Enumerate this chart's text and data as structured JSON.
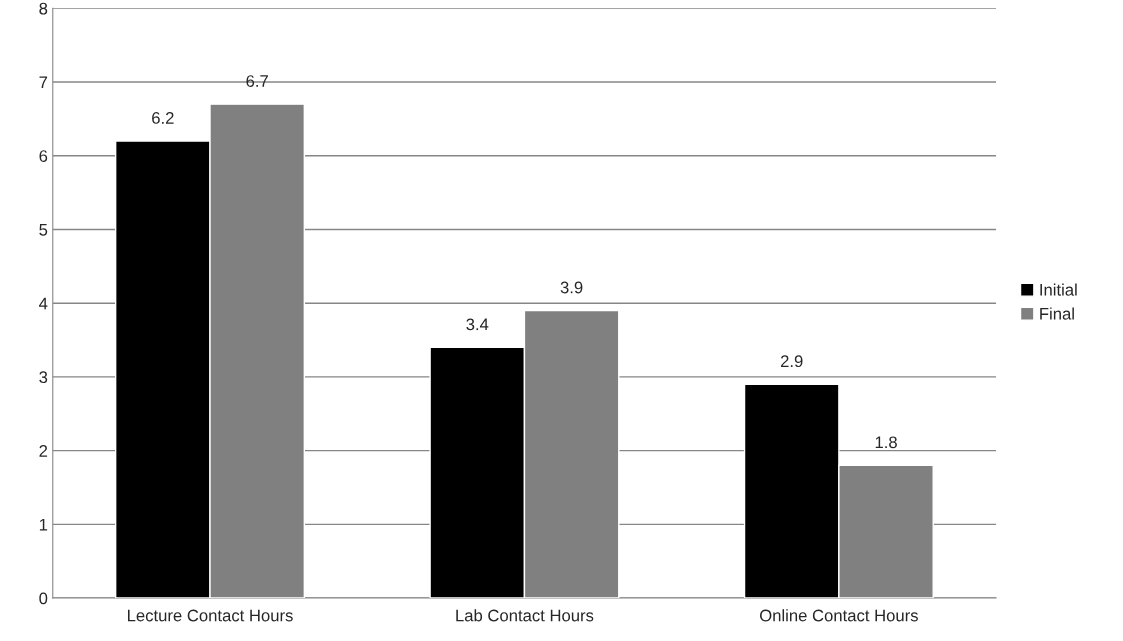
{
  "chart_data": {
    "type": "bar",
    "categories": [
      "Lecture Contact Hours",
      "Lab Contact Hours",
      "Online Contact Hours"
    ],
    "series": [
      {
        "name": "Initial",
        "color": "#000000",
        "values": [
          6.2,
          3.4,
          2.9
        ]
      },
      {
        "name": "Final",
        "color": "#808080",
        "values": [
          6.7,
          3.9,
          1.8
        ]
      }
    ],
    "ylim": [
      0,
      8
    ],
    "yticks": [
      0,
      1,
      2,
      3,
      4,
      5,
      6,
      7,
      8
    ],
    "grid": "y",
    "legend": "right",
    "data_labels": true
  }
}
